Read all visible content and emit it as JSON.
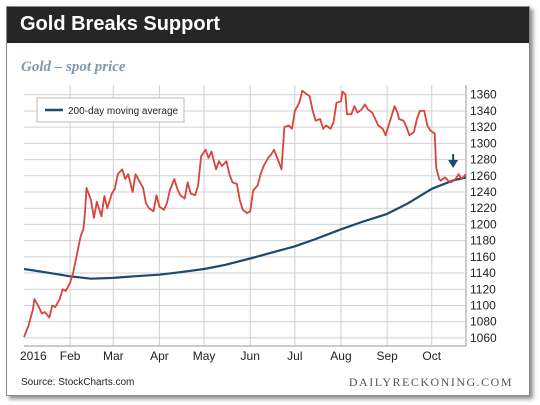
{
  "header": {
    "title": "Gold Breaks Support"
  },
  "subtitle": "Gold – spot price",
  "source": "Source: StockCharts.com",
  "brand": "DAILYRECKONING.COM",
  "colors": {
    "price": "#d9433b",
    "ma": "#1c4a6e",
    "header": "#262626",
    "subtitle": "#7a9ab0",
    "grid": "#d0d0d0"
  },
  "chart_data": {
    "type": "line",
    "ylim": [
      1050,
      1372
    ],
    "yticks": [
      1060,
      1080,
      1100,
      1120,
      1140,
      1160,
      1180,
      1200,
      1220,
      1240,
      1260,
      1280,
      1300,
      1320,
      1340,
      1360
    ],
    "xlim": [
      "2016-01-01",
      "2016-10-24"
    ],
    "xticks": [
      {
        "label": "2016",
        "date": "2016-01-01"
      },
      {
        "label": "Feb",
        "date": "2016-02-01"
      },
      {
        "label": "Mar",
        "date": "2016-03-01"
      },
      {
        "label": "Apr",
        "date": "2016-04-01"
      },
      {
        "label": "May",
        "date": "2016-05-01"
      },
      {
        "label": "Jun",
        "date": "2016-06-01"
      },
      {
        "label": "Jul",
        "date": "2016-07-01"
      },
      {
        "label": "Aug",
        "date": "2016-08-01"
      },
      {
        "label": "Sep",
        "date": "2016-09-01"
      },
      {
        "label": "Oct",
        "date": "2016-10-01"
      }
    ],
    "grid": true,
    "legend_position": "top-left",
    "annotation": "down-arrow",
    "series": [
      {
        "name": "",
        "color": "#d9433b",
        "points": [
          [
            "2016-01-01",
            1061
          ],
          [
            "2016-01-04",
            1075
          ],
          [
            "2016-01-07",
            1095
          ],
          [
            "2016-01-08",
            1108
          ],
          [
            "2016-01-11",
            1098
          ],
          [
            "2016-01-13",
            1090
          ],
          [
            "2016-01-15",
            1092
          ],
          [
            "2016-01-18",
            1085
          ],
          [
            "2016-01-20",
            1100
          ],
          [
            "2016-01-22",
            1098
          ],
          [
            "2016-01-25",
            1108
          ],
          [
            "2016-01-27",
            1120
          ],
          [
            "2016-01-29",
            1118
          ],
          [
            "2016-02-01",
            1128
          ],
          [
            "2016-02-03",
            1140
          ],
          [
            "2016-02-05",
            1158
          ],
          [
            "2016-02-08",
            1185
          ],
          [
            "2016-02-10",
            1195
          ],
          [
            "2016-02-11",
            1215
          ],
          [
            "2016-02-12",
            1245
          ],
          [
            "2016-02-15",
            1230
          ],
          [
            "2016-02-17",
            1208
          ],
          [
            "2016-02-19",
            1228
          ],
          [
            "2016-02-22",
            1210
          ],
          [
            "2016-02-24",
            1235
          ],
          [
            "2016-02-26",
            1220
          ],
          [
            "2016-02-29",
            1238
          ],
          [
            "2016-03-02",
            1244
          ],
          [
            "2016-03-04",
            1262
          ],
          [
            "2016-03-07",
            1268
          ],
          [
            "2016-03-09",
            1256
          ],
          [
            "2016-03-11",
            1262
          ],
          [
            "2016-03-14",
            1240
          ],
          [
            "2016-03-16",
            1262
          ],
          [
            "2016-03-18",
            1255
          ],
          [
            "2016-03-21",
            1245
          ],
          [
            "2016-03-23",
            1226
          ],
          [
            "2016-03-25",
            1220
          ],
          [
            "2016-03-28",
            1216
          ],
          [
            "2016-03-30",
            1236
          ],
          [
            "2016-04-01",
            1222
          ],
          [
            "2016-04-04",
            1218
          ],
          [
            "2016-04-06",
            1226
          ],
          [
            "2016-04-08",
            1242
          ],
          [
            "2016-04-11",
            1256
          ],
          [
            "2016-04-13",
            1244
          ],
          [
            "2016-04-15",
            1236
          ],
          [
            "2016-04-18",
            1232
          ],
          [
            "2016-04-20",
            1252
          ],
          [
            "2016-04-22",
            1238
          ],
          [
            "2016-04-25",
            1236
          ],
          [
            "2016-04-27",
            1248
          ],
          [
            "2016-04-29",
            1284
          ],
          [
            "2016-05-02",
            1292
          ],
          [
            "2016-05-04",
            1282
          ],
          [
            "2016-05-06",
            1290
          ],
          [
            "2016-05-09",
            1268
          ],
          [
            "2016-05-11",
            1278
          ],
          [
            "2016-05-13",
            1272
          ],
          [
            "2016-05-16",
            1278
          ],
          [
            "2016-05-18",
            1262
          ],
          [
            "2016-05-20",
            1252
          ],
          [
            "2016-05-23",
            1250
          ],
          [
            "2016-05-25",
            1230
          ],
          [
            "2016-05-27",
            1218
          ],
          [
            "2016-05-30",
            1214
          ],
          [
            "2016-06-01",
            1216
          ],
          [
            "2016-06-03",
            1242
          ],
          [
            "2016-06-06",
            1248
          ],
          [
            "2016-06-08",
            1262
          ],
          [
            "2016-06-10",
            1272
          ],
          [
            "2016-06-13",
            1282
          ],
          [
            "2016-06-15",
            1286
          ],
          [
            "2016-06-17",
            1292
          ],
          [
            "2016-06-20",
            1278
          ],
          [
            "2016-06-22",
            1268
          ],
          [
            "2016-06-24",
            1320
          ],
          [
            "2016-06-27",
            1322
          ],
          [
            "2016-06-29",
            1318
          ],
          [
            "2016-07-01",
            1340
          ],
          [
            "2016-07-04",
            1350
          ],
          [
            "2016-07-06",
            1365
          ],
          [
            "2016-07-08",
            1362
          ],
          [
            "2016-07-11",
            1358
          ],
          [
            "2016-07-13",
            1340
          ],
          [
            "2016-07-15",
            1328
          ],
          [
            "2016-07-18",
            1330
          ],
          [
            "2016-07-20",
            1318
          ],
          [
            "2016-07-22",
            1322
          ],
          [
            "2016-07-25",
            1318
          ],
          [
            "2016-07-27",
            1326
          ],
          [
            "2016-07-29",
            1350
          ],
          [
            "2016-08-01",
            1352
          ],
          [
            "2016-08-02",
            1364
          ],
          [
            "2016-08-04",
            1360
          ],
          [
            "2016-08-05",
            1336
          ],
          [
            "2016-08-08",
            1336
          ],
          [
            "2016-08-10",
            1346
          ],
          [
            "2016-08-12",
            1338
          ],
          [
            "2016-08-15",
            1342
          ],
          [
            "2016-08-17",
            1348
          ],
          [
            "2016-08-19",
            1342
          ],
          [
            "2016-08-22",
            1338
          ],
          [
            "2016-08-24",
            1330
          ],
          [
            "2016-08-26",
            1322
          ],
          [
            "2016-08-29",
            1318
          ],
          [
            "2016-08-31",
            1310
          ],
          [
            "2016-09-02",
            1322
          ],
          [
            "2016-09-06",
            1346
          ],
          [
            "2016-09-08",
            1338
          ],
          [
            "2016-09-09",
            1330
          ],
          [
            "2016-09-12",
            1328
          ],
          [
            "2016-09-14",
            1320
          ],
          [
            "2016-09-16",
            1310
          ],
          [
            "2016-09-19",
            1314
          ],
          [
            "2016-09-21",
            1330
          ],
          [
            "2016-09-23",
            1340
          ],
          [
            "2016-09-26",
            1340
          ],
          [
            "2016-09-28",
            1322
          ],
          [
            "2016-09-30",
            1316
          ],
          [
            "2016-10-03",
            1312
          ],
          [
            "2016-10-04",
            1270
          ],
          [
            "2016-10-06",
            1256
          ],
          [
            "2016-10-07",
            1254
          ],
          [
            "2016-10-10",
            1258
          ],
          [
            "2016-10-12",
            1254
          ],
          [
            "2016-10-14",
            1252
          ],
          [
            "2016-10-17",
            1256
          ],
          [
            "2016-10-19",
            1262
          ],
          [
            "2016-10-21",
            1256
          ],
          [
            "2016-10-24",
            1262
          ]
        ]
      },
      {
        "name": "200-day moving average",
        "color": "#1c4a6e",
        "points": [
          [
            "2016-01-01",
            1145
          ],
          [
            "2016-01-15",
            1141
          ],
          [
            "2016-02-01",
            1136
          ],
          [
            "2016-02-15",
            1133
          ],
          [
            "2016-03-01",
            1134
          ],
          [
            "2016-03-15",
            1136
          ],
          [
            "2016-04-01",
            1138
          ],
          [
            "2016-04-15",
            1141
          ],
          [
            "2016-05-01",
            1145
          ],
          [
            "2016-05-15",
            1150
          ],
          [
            "2016-06-01",
            1158
          ],
          [
            "2016-06-15",
            1165
          ],
          [
            "2016-07-01",
            1173
          ],
          [
            "2016-07-15",
            1182
          ],
          [
            "2016-08-01",
            1194
          ],
          [
            "2016-08-15",
            1203
          ],
          [
            "2016-09-01",
            1213
          ],
          [
            "2016-09-15",
            1226
          ],
          [
            "2016-10-01",
            1244
          ],
          [
            "2016-10-15",
            1254
          ],
          [
            "2016-10-24",
            1258
          ]
        ]
      }
    ]
  }
}
